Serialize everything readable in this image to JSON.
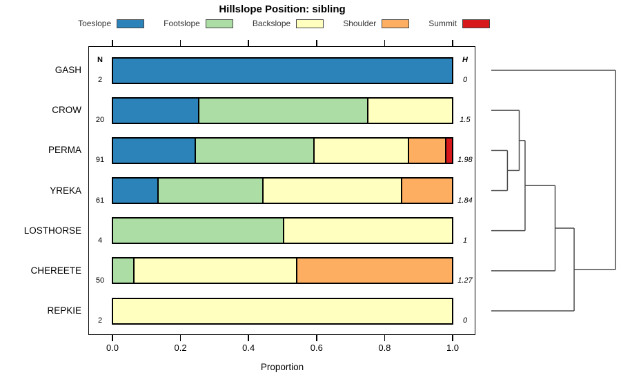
{
  "figure": {
    "background": "#ffffff"
  },
  "chart_data": {
    "type": "bar",
    "orientation": "horizontal",
    "stacked": true,
    "title": "Hillslope Position: sibling",
    "xlabel": "Proportion",
    "xlim": [
      0,
      1
    ],
    "xtick_labels": [
      "0.0",
      "0.2",
      "0.4",
      "0.6",
      "0.8",
      "1.0"
    ],
    "xtick_values": [
      0.0,
      0.2,
      0.4,
      0.6,
      0.8,
      1.0
    ],
    "grid": "off",
    "legend_position": "top",
    "stack_categories": [
      "Toeslope",
      "Footslope",
      "Backslope",
      "Shoulder",
      "Summit"
    ],
    "colors": {
      "Toeslope": "#2B83BA",
      "Footslope": "#ABDDA4",
      "Backslope": "#FFFFBF",
      "Shoulder": "#FDAE61",
      "Summit": "#D7191C"
    },
    "left_column_header": "N",
    "right_column_header": "H",
    "rows": [
      {
        "name": "GASH",
        "n": "2",
        "shannon_h": "0",
        "values": [
          1,
          0,
          0,
          0,
          0
        ]
      },
      {
        "name": "CROW",
        "n": "20",
        "shannon_h": "1.5",
        "values": [
          0.25,
          0.5,
          0.25,
          0,
          0
        ]
      },
      {
        "name": "PERMA",
        "n": "91",
        "shannon_h": "1.98",
        "values": [
          0.24,
          0.35,
          0.28,
          0.11,
          0.02
        ]
      },
      {
        "name": "YREKA",
        "n": "61",
        "shannon_h": "1.84",
        "values": [
          0.13,
          0.31,
          0.41,
          0.15,
          0
        ]
      },
      {
        "name": "LOSTHORSE",
        "n": "4",
        "shannon_h": "1",
        "values": [
          0,
          0.5,
          0.5,
          0,
          0
        ]
      },
      {
        "name": "CHEREETE",
        "n": "50",
        "shannon_h": "1.27",
        "values": [
          0,
          0.06,
          0.48,
          0.46,
          0
        ]
      },
      {
        "name": "REPKIE",
        "n": "2",
        "shannon_h": "0",
        "values": [
          0,
          0,
          1,
          0,
          0
        ]
      }
    ],
    "dendrogram": {
      "leaf_order": [
        "GASH",
        "CROW",
        "PERMA",
        "YREKA",
        "LOSTHORSE",
        "CHEREETE",
        "REPKIE"
      ],
      "merges": [
        {
          "a": "PERMA",
          "b": "YREKA",
          "height": 0.13,
          "id": "node0"
        },
        {
          "a": "CROW",
          "b": "node0",
          "height": 0.225,
          "id": "node1"
        },
        {
          "a": "node1",
          "b": "LOSTHORSE",
          "height": 0.272,
          "id": "node2"
        },
        {
          "a": "node2",
          "b": "CHEREETE",
          "height": 0.514,
          "id": "node3"
        },
        {
          "a": "node3",
          "b": "REPKIE",
          "height": 0.667,
          "id": "node4"
        },
        {
          "a": "GASH",
          "b": "node4",
          "height": 1.0,
          "id": "node5"
        }
      ]
    }
  }
}
